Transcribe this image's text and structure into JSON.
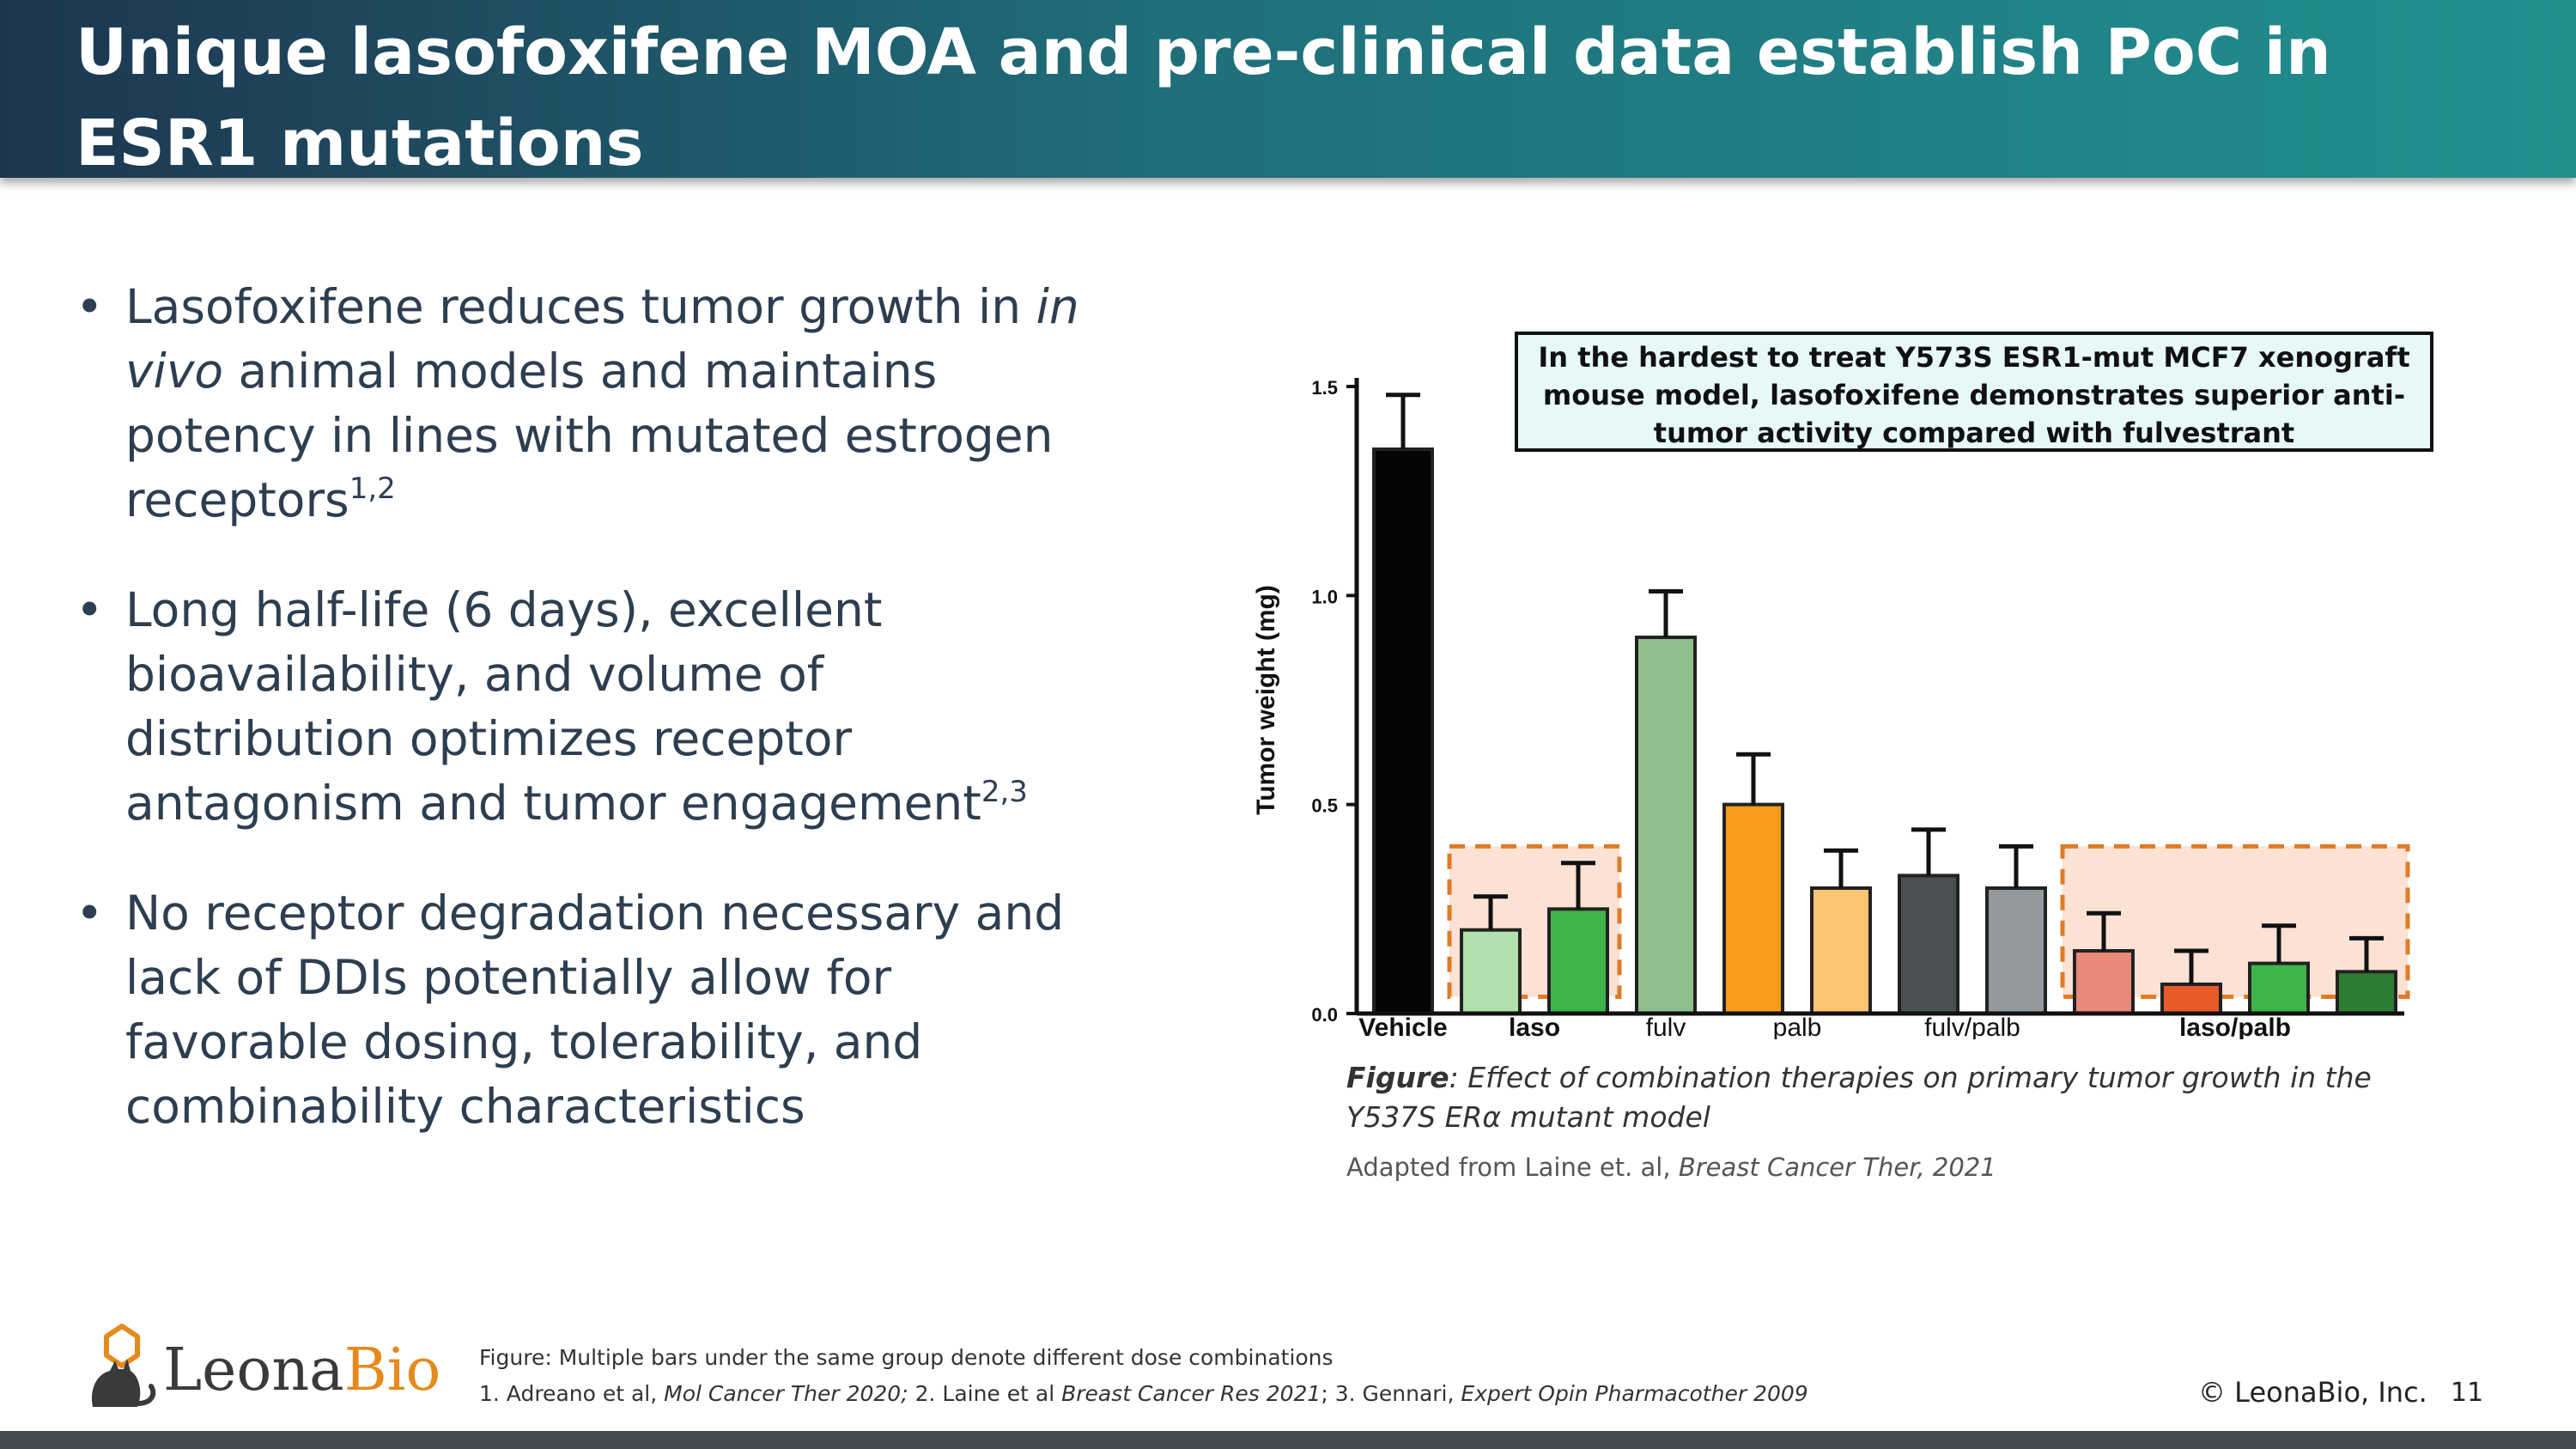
{
  "slide": {
    "title": "Unique lasofoxifene MOA and pre-clinical data establish PoC in ESR1 mutations",
    "page_number": "11",
    "copyright": "© LeonaBio, Inc."
  },
  "bullets": [
    {
      "pre": "Lasofoxifene reduces tumor growth in ",
      "ital": "in vivo",
      "post": " animal models and maintains potency in lines with mutated estrogen receptors",
      "sup": "1,2"
    },
    {
      "pre": "Long half-life (6 days), excellent bioavailability, and volume of distribution optimizes receptor antagonism and tumor engagement",
      "ital": "",
      "post": "",
      "sup": "2,3"
    },
    {
      "pre": "No receptor degradation necessary and lack of DDIs potentially allow for favorable dosing, tolerability, and combinability characteristics",
      "ital": "",
      "post": "",
      "sup": ""
    }
  ],
  "callout": "In the hardest to treat Y573S ESR1-mut MCF7 xenograft mouse model, lasofoxifene demonstrates superior anti-tumor activity compared with fulvestrant",
  "figure": {
    "caption_label": "Figure",
    "caption_text": ": Effect of combination therapies on primary tumor growth in the Y537S ERα mutant model",
    "adapted_prefix": "Adapted from Laine et. al, ",
    "adapted_source": "Breast Cancer Ther, 2021"
  },
  "footnotes": {
    "note": "Figure: Multiple bars under the same group denote different dose combinations",
    "refs": [
      {
        "text": "1. Adreano et al, ",
        "ital": "Mol Cancer Ther 2020;"
      },
      {
        "text": " 2. Laine et al ",
        "ital": "Breast Cancer Res 2021"
      },
      {
        "text": "; 3. Gennari, ",
        "ital": "Expert Opin Pharmacother 2009"
      }
    ]
  },
  "logo": {
    "text_a": "Leona",
    "text_b": "Bio",
    "mark": "cat-icon"
  },
  "colors": {
    "accent_orange": "#e07b26",
    "highlight_fill": "#fbe2d4",
    "callout_fill": "#e6f8f8"
  },
  "chart_data": {
    "type": "bar",
    "ylabel": "Tumor weight (mg)",
    "ylim": [
      0,
      1.5
    ],
    "yticks": [
      "0.0",
      "0.5",
      "1.0",
      "1.5"
    ],
    "groups": [
      {
        "label": "Vehicle",
        "bold": true
      },
      {
        "label": "laso",
        "bold": true
      },
      {
        "label": "fulv",
        "bold": false
      },
      {
        "label": "palb",
        "bold": false
      },
      {
        "label": "fulv/palb",
        "bold": false
      },
      {
        "label": "laso/palb",
        "bold": true
      }
    ],
    "bars": [
      {
        "group": 0,
        "value": 1.35,
        "error": 0.13,
        "color": "#050505"
      },
      {
        "group": 1,
        "value": 0.2,
        "error": 0.08,
        "color": "#b0e0ab"
      },
      {
        "group": 1,
        "value": 0.25,
        "error": 0.11,
        "color": "#3db54a"
      },
      {
        "group": 2,
        "value": 0.9,
        "error": 0.11,
        "color": "#8fbf8f"
      },
      {
        "group": 3,
        "value": 0.5,
        "error": 0.12,
        "color": "#f99b1c"
      },
      {
        "group": 3,
        "value": 0.3,
        "error": 0.09,
        "color": "#fdc573"
      },
      {
        "group": 4,
        "value": 0.33,
        "error": 0.11,
        "color": "#4a4f52"
      },
      {
        "group": 4,
        "value": 0.3,
        "error": 0.1,
        "color": "#93999c"
      },
      {
        "group": 5,
        "value": 0.15,
        "error": 0.09,
        "color": "#e8897a"
      },
      {
        "group": 5,
        "value": 0.07,
        "error": 0.08,
        "color": "#e85a2a"
      },
      {
        "group": 5,
        "value": 0.12,
        "error": 0.09,
        "color": "#3db54a"
      },
      {
        "group": 5,
        "value": 0.1,
        "error": 0.08,
        "color": "#2e7d32"
      }
    ],
    "highlight_groups": [
      1,
      5
    ]
  }
}
